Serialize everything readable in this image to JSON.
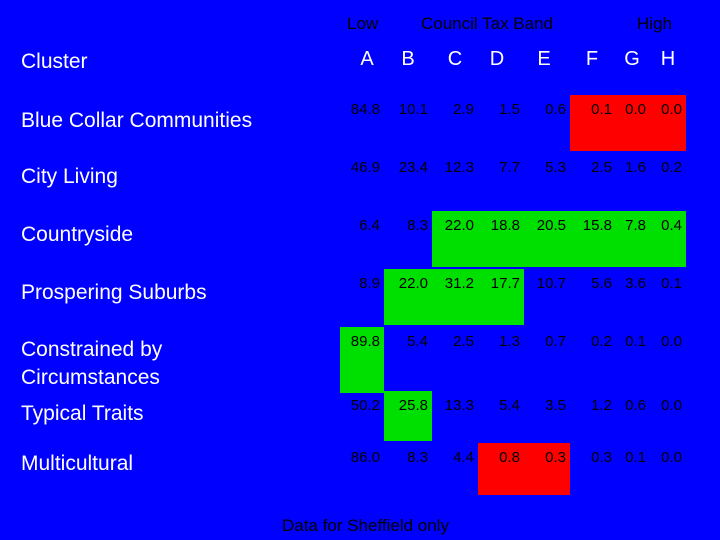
{
  "header": {
    "low_label": "Low",
    "band_label": "Council Tax Band",
    "high_label": "High"
  },
  "table": {
    "corner_label": "Cluster",
    "columns": [
      "A",
      "B",
      "C",
      "D",
      "E",
      "F",
      "G",
      "H"
    ],
    "rows": [
      {
        "label": "Blue Collar Communities",
        "values": [
          "84.8",
          "10.1",
          "2.9",
          "1.5",
          "0.6",
          "0.1",
          "0.0",
          "0.0"
        ],
        "colors": [
          "",
          "",
          "",
          "",
          "",
          "red",
          "red",
          "red"
        ]
      },
      {
        "label": "City Living",
        "values": [
          "46.9",
          "23.4",
          "12.3",
          "7.7",
          "5.3",
          "2.5",
          "1.6",
          "0.2"
        ],
        "colors": [
          "",
          "",
          "",
          "",
          "",
          "",
          "",
          ""
        ]
      },
      {
        "label": "Countryside",
        "values": [
          "6.4",
          "8.3",
          "22.0",
          "18.8",
          "20.5",
          "15.8",
          "7.8",
          "0.4"
        ],
        "colors": [
          "",
          "",
          "green",
          "green",
          "green",
          "green",
          "green",
          "green"
        ]
      },
      {
        "label": "Prospering Suburbs",
        "values": [
          "8.9",
          "22.0",
          "31.2",
          "17.7",
          "10.7",
          "5.6",
          "3.6",
          "0.1"
        ],
        "colors": [
          "",
          "green",
          "green",
          "green",
          "",
          "",
          "",
          ""
        ]
      },
      {
        "label": "Constrained by Circumstances",
        "values": [
          "89.8",
          "5.4",
          "2.5",
          "1.3",
          "0.7",
          "0.2",
          "0.1",
          "0.0"
        ],
        "colors": [
          "green",
          "",
          "",
          "",
          "",
          "",
          "",
          ""
        ]
      },
      {
        "label": "Typical Traits",
        "values": [
          "50.2",
          "25.8",
          "13.3",
          "5.4",
          "3.5",
          "1.2",
          "0.6",
          "0.0"
        ],
        "colors": [
          "",
          "green",
          "",
          "",
          "",
          "",
          "",
          ""
        ]
      },
      {
        "label": "Multicultural",
        "values": [
          "86.0",
          "8.3",
          "4.4",
          "0.8",
          "0.3",
          "0.3",
          "0.1",
          "0.0"
        ],
        "colors": [
          "",
          "",
          "",
          "red",
          "red",
          "",
          "",
          ""
        ]
      }
    ]
  },
  "footnote": "Data for Sheffield only",
  "colors": {
    "background": "#0000ff",
    "highlight_high": "#00e000",
    "highlight_low": "#ff0000"
  }
}
